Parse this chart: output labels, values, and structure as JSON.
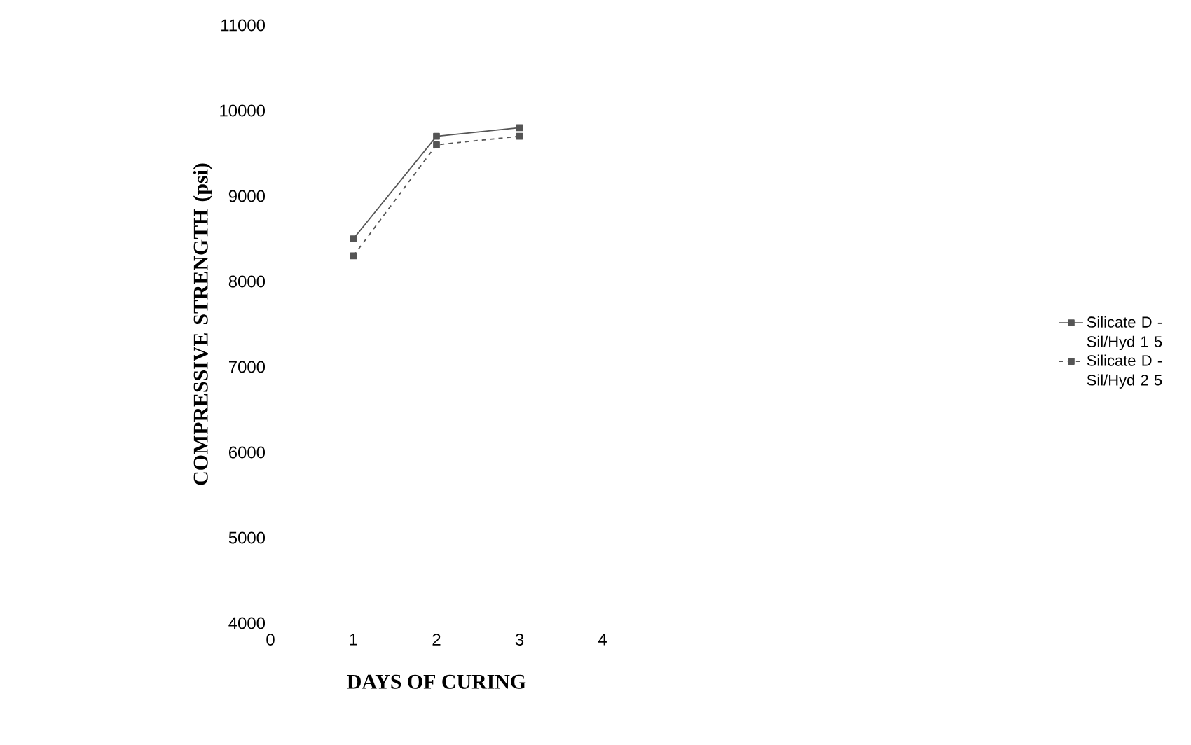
{
  "chart_data": {
    "type": "line",
    "xlabel": "DAYS OF CURING",
    "ylabel": "COMPRESSIVE STRENGTH (psi)",
    "x": [
      1,
      2,
      3
    ],
    "series": [
      {
        "name": "Silicate D - Sil/Hyd 1 5",
        "color": "#555555",
        "values": [
          8500,
          9700,
          9800
        ],
        "line_style": "solid"
      },
      {
        "name": "Silicate D - Sil/Hyd 2 5",
        "color": "#555555",
        "values": [
          8300,
          9600,
          9700
        ],
        "line_style": "dashed"
      }
    ],
    "xlim": [
      0,
      4
    ],
    "xticks": [
      0,
      1,
      2,
      3,
      4
    ],
    "ylim": [
      4000,
      11000
    ],
    "yticks": [
      4000,
      5000,
      6000,
      7000,
      8000,
      9000,
      10000,
      11000
    ],
    "grid": false,
    "legend": "right",
    "marker": "square"
  }
}
